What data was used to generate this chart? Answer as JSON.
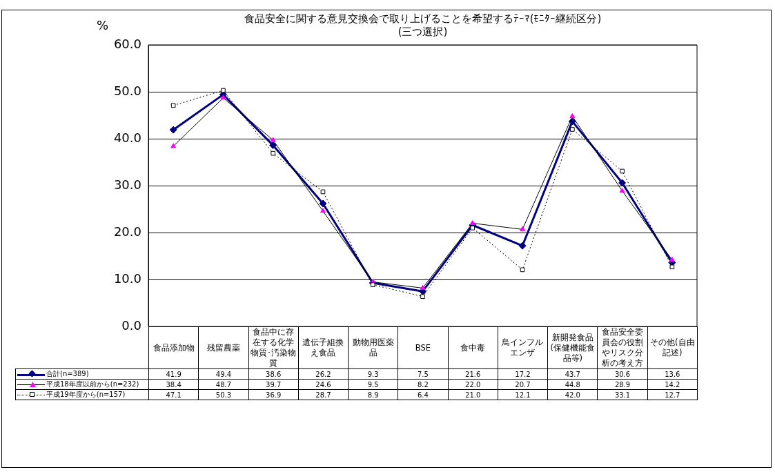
{
  "chart_data": {
    "type": "line",
    "title": "食品安全に関する意見交換会で取り上げることを希望するﾃｰﾏ(ﾓﾆﾀｰ継続区分)",
    "subtitle": "(三つ選択)",
    "ylabel": "%",
    "categories": [
      "食品添加物",
      "残留農薬",
      "食品中に存在する化学物質･汚染物質",
      "遺伝子組換え食品",
      "動物用医薬品",
      "BSE",
      "食中毒",
      "鳥インフルエンザ",
      "新開発食品(保健機能食品等)",
      "食品安全委員会の役割やリスク分析の考え方",
      "その他(自由記述)"
    ],
    "series": [
      {
        "name": "合計(n=389)",
        "color": "#000080",
        "marker": "diamond",
        "line_style": "solid",
        "values": [
          41.9,
          49.4,
          38.6,
          26.2,
          9.3,
          7.5,
          21.6,
          17.2,
          43.7,
          30.6,
          13.6
        ],
        "value_labels": [
          "41.9",
          "49.4",
          "38.6",
          "26.2",
          "9.3",
          "7.5",
          "21.6",
          "17.2",
          "43.7",
          "30.6",
          "13.6"
        ]
      },
      {
        "name": "平成18年度以前から(n=232)",
        "color": "#ff00ff",
        "marker": "triangle",
        "line_style": "solid",
        "values": [
          38.4,
          48.7,
          39.7,
          24.6,
          9.5,
          8.2,
          22.0,
          20.7,
          44.8,
          28.9,
          14.2
        ],
        "value_labels": [
          "38.4",
          "48.7",
          "39.7",
          "24.6",
          "9.5",
          "8.2",
          "22.0",
          "20.7",
          "44.8",
          "28.9",
          "14.2"
        ]
      },
      {
        "name": "平成19年度から(n=157)",
        "color": "#000000",
        "marker": "square",
        "line_style": "dotted",
        "values": [
          47.1,
          50.3,
          36.9,
          28.7,
          8.9,
          6.4,
          21.0,
          12.1,
          42.0,
          33.1,
          12.7
        ],
        "value_labels": [
          "47.1",
          "50.3",
          "36.9",
          "28.7",
          "8.9",
          "6.4",
          "21.0",
          "12.1",
          "42.0",
          "33.1",
          "12.7"
        ]
      }
    ],
    "ylim": [
      0,
      60
    ],
    "yticks": [
      {
        "value": 0,
        "label": "0.0"
      },
      {
        "value": 10,
        "label": "10.0"
      },
      {
        "value": 20,
        "label": "20.0"
      },
      {
        "value": 30,
        "label": "30.0"
      },
      {
        "value": 40,
        "label": "40.0"
      },
      {
        "value": 50,
        "label": "50.0"
      },
      {
        "value": 60,
        "label": "60.0"
      }
    ],
    "grid": "y",
    "legend": "bottom"
  }
}
